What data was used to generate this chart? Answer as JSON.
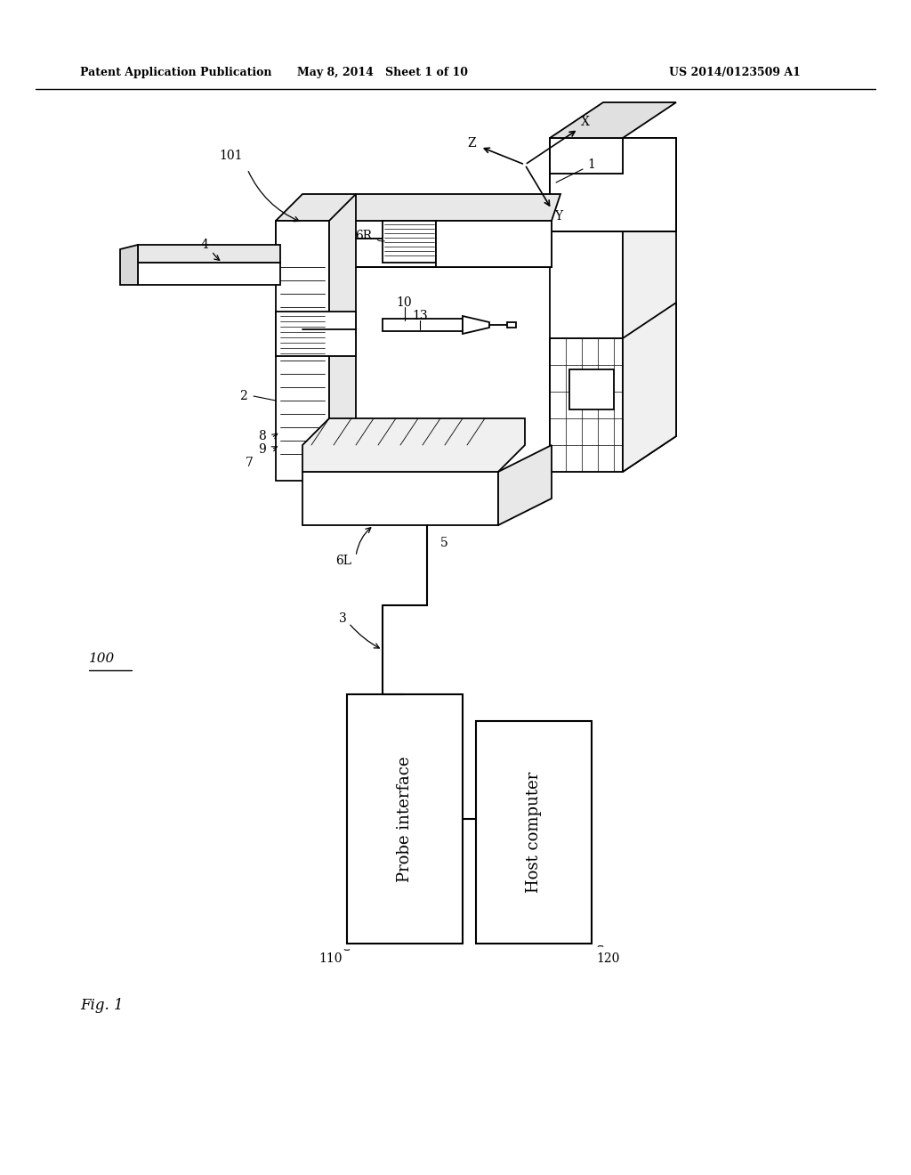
{
  "bg_color": "#ffffff",
  "header_left": "Patent Application Publication",
  "header_mid": "May 8, 2014   Sheet 1 of 10",
  "header_right": "US 2014/0123509 A1",
  "fig_label": "Fig. 1",
  "box1_label": "Probe interface",
  "box1_ref": "110",
  "box2_label": "Host computer",
  "box2_ref": "120",
  "system_ref": "100",
  "line_color": "#000000",
  "lw": 1.3
}
